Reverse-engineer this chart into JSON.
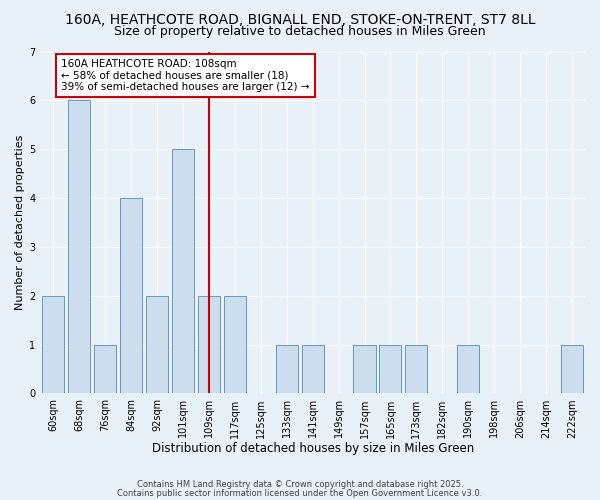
{
  "title_line1": "160A, HEATHCOTE ROAD, BIGNALL END, STOKE-ON-TRENT, ST7 8LL",
  "title_line2": "Size of property relative to detached houses in Miles Green",
  "xlabel": "Distribution of detached houses by size in Miles Green",
  "ylabel": "Number of detached properties",
  "categories": [
    "60sqm",
    "68sqm",
    "76sqm",
    "84sqm",
    "92sqm",
    "101sqm",
    "109sqm",
    "117sqm",
    "125sqm",
    "133sqm",
    "141sqm",
    "149sqm",
    "157sqm",
    "165sqm",
    "173sqm",
    "182sqm",
    "190sqm",
    "198sqm",
    "206sqm",
    "214sqm",
    "222sqm"
  ],
  "values": [
    2,
    6,
    1,
    4,
    2,
    5,
    2,
    2,
    0,
    1,
    1,
    0,
    1,
    1,
    1,
    0,
    1,
    0,
    0,
    0,
    1
  ],
  "bar_color": "#ccdded",
  "bar_edge_color": "#6699bb",
  "reference_line_x": 6,
  "reference_line_color": "#cc0000",
  "annotation_line1": "160A HEATHCOTE ROAD: 108sqm",
  "annotation_line2": "← 58% of detached houses are smaller (18)",
  "annotation_line3": "39% of semi-detached houses are larger (12) →",
  "ylim": [
    0,
    7
  ],
  "yticks": [
    0,
    1,
    2,
    3,
    4,
    5,
    6,
    7
  ],
  "background_color": "#e8f0f8",
  "grid_color": "#ffffff",
  "footer_line1": "Contains HM Land Registry data © Crown copyright and database right 2025.",
  "footer_line2": "Contains public sector information licensed under the Open Government Licence v3.0.",
  "title_fontsize": 10,
  "subtitle_fontsize": 9,
  "xlabel_fontsize": 8.5,
  "ylabel_fontsize": 8,
  "tick_fontsize": 7,
  "annotation_fontsize": 7.5,
  "footer_fontsize": 6
}
